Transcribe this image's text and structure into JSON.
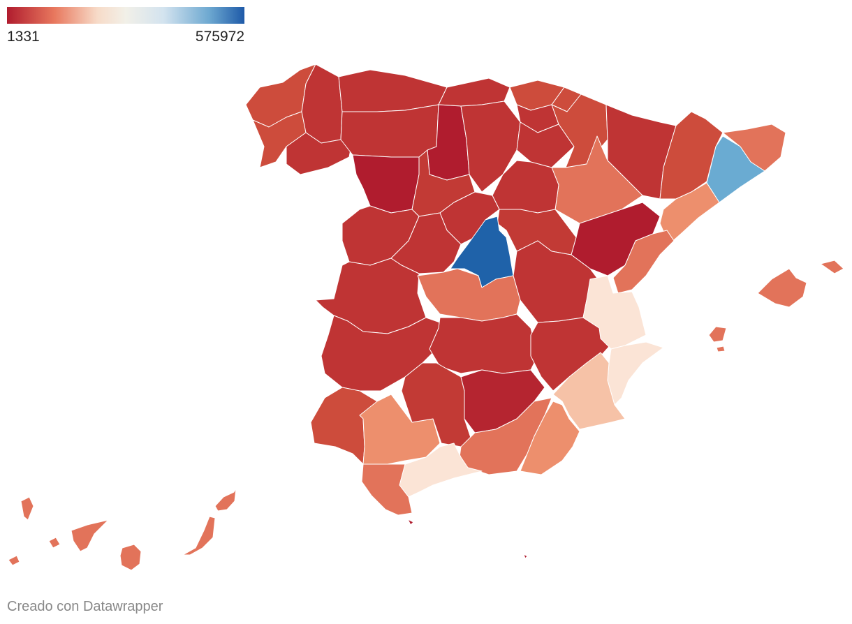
{
  "legend": {
    "min_label": "1331",
    "max_label": "575972",
    "stops": [
      "#b01c2e",
      "#e8785e",
      "#f7dbc8",
      "#f2f0e8",
      "#d3e3ef",
      "#6ea9d1",
      "#1e5aa8"
    ]
  },
  "footer": {
    "credit": "Creado con Datawrapper"
  },
  "colors": {
    "darkest_red": "#b01c2e",
    "red": "#bf3434",
    "red_light": "#cd4c3c",
    "orange": "#e2735a",
    "orange_light": "#ed8f6d",
    "salmon": "#f6c2a7",
    "cream": "#fbe4d6",
    "light_blue": "#6aabd2",
    "blue": "#1f62a9"
  }
}
